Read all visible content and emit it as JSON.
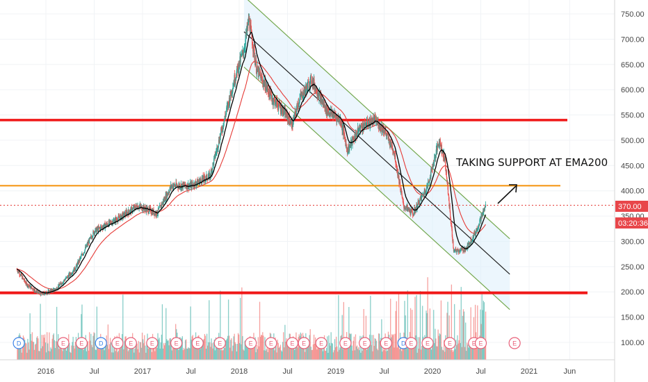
{
  "chart_data": {
    "type": "candlestick",
    "x_ticks": [
      "2016",
      "Jul",
      "2017",
      "Jul",
      "2018",
      "Jul",
      "2019",
      "Jul",
      "2020",
      "Jul",
      "2021",
      "Jun"
    ],
    "y_ticks": [
      "750.00",
      "700.00",
      "650.00",
      "600.00",
      "550.00",
      "500.00",
      "450.00",
      "400.00",
      "350.00",
      "300.00",
      "250.00",
      "200.00",
      "150.00",
      "100.00"
    ],
    "ylim": [
      70,
      770
    ],
    "price_path": [
      [
        2015.7,
        245
      ],
      [
        2015.8,
        215
      ],
      [
        2015.95,
        195
      ],
      [
        2016.1,
        205
      ],
      [
        2016.3,
        245
      ],
      [
        2016.5,
        320
      ],
      [
        2016.75,
        345
      ],
      [
        2016.95,
        370
      ],
      [
        2017.15,
        355
      ],
      [
        2017.3,
        410
      ],
      [
        2017.5,
        410
      ],
      [
        2017.7,
        430
      ],
      [
        2017.95,
        620
      ],
      [
        2018.05,
        680
      ],
      [
        2018.1,
        740
      ],
      [
        2018.18,
        640
      ],
      [
        2018.35,
        580
      ],
      [
        2018.45,
        560
      ],
      [
        2018.55,
        530
      ],
      [
        2018.62,
        580
      ],
      [
        2018.75,
        620
      ],
      [
        2018.9,
        560
      ],
      [
        2019.05,
        540
      ],
      [
        2019.12,
        480
      ],
      [
        2019.25,
        525
      ],
      [
        2019.4,
        540
      ],
      [
        2019.5,
        520
      ],
      [
        2019.6,
        480
      ],
      [
        2019.7,
        370
      ],
      [
        2019.8,
        355
      ],
      [
        2019.95,
        410
      ],
      [
        2020.07,
        500
      ],
      [
        2020.13,
        460
      ],
      [
        2020.22,
        280
      ],
      [
        2020.35,
        285
      ],
      [
        2020.45,
        320
      ],
      [
        2020.55,
        370
      ]
    ],
    "support_lines": [
      {
        "value": 540,
        "color": "#f01818",
        "label": ""
      },
      {
        "value": 410,
        "color": "#f5920a",
        "label": ""
      },
      {
        "value": 198,
        "color": "#f01818",
        "label": ""
      }
    ],
    "channel": {
      "start": [
        2018.05,
        745
      ],
      "end": [
        2020.8,
        235
      ],
      "width": 140
    },
    "last_price": "370.00",
    "last_price_color": "#e8464a",
    "countdown": "03:20:36",
    "annotation": "TAKING SUPPORT AT EMA200",
    "earnings_markers": [
      "D",
      "E",
      "E",
      "D",
      "E",
      "E",
      "E",
      "E",
      "E",
      "E",
      "E",
      "E",
      "E",
      "E",
      "E",
      "E",
      "E",
      "E",
      "D",
      "E",
      "E",
      "E",
      "E",
      "E",
      "E"
    ],
    "colors": {
      "up": "#26a69a",
      "down": "#ef5350",
      "ema_short": "#000000",
      "ema_long": "#e53935",
      "channel": "#74a84f",
      "price_dots": "#e53935",
      "earnings": "#e85f78",
      "dividend": "#3a82e8"
    }
  }
}
